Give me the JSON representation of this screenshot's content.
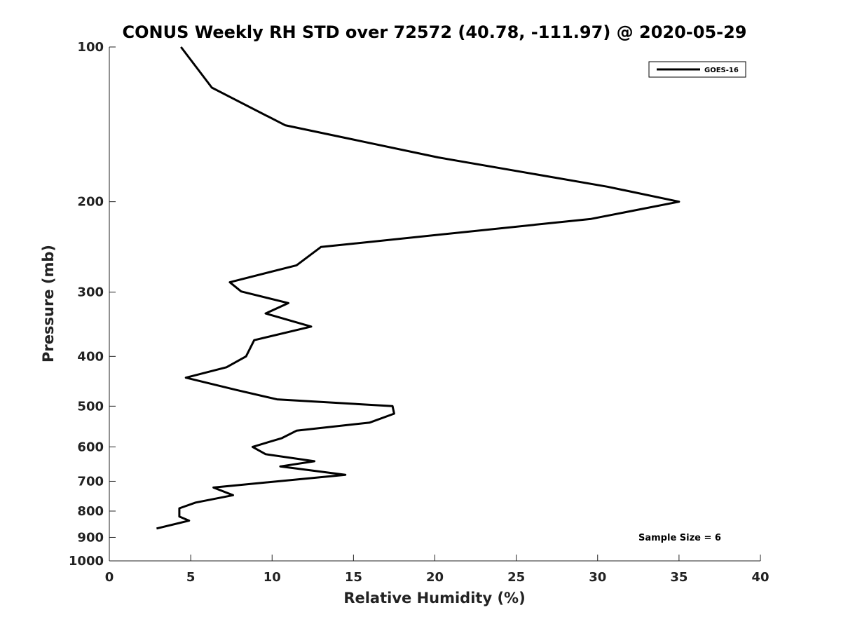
{
  "chart_data": {
    "type": "line",
    "title": "CONUS Weekly RH STD over 72572 (40.78, -111.97) @ 2020-05-29",
    "xlabel": "Relative Humidity (%)",
    "ylabel": "Pressure (mb)",
    "xlim": [
      0,
      40
    ],
    "ylim": [
      1000,
      100
    ],
    "yscale": "log",
    "x_ticks": [
      0,
      5,
      10,
      15,
      20,
      25,
      30,
      35,
      40
    ],
    "x_tick_labels": [
      "0",
      "5",
      "10",
      "15",
      "20",
      "25",
      "30",
      "35",
      "40"
    ],
    "y_ticks": [
      100,
      200,
      300,
      400,
      500,
      600,
      700,
      800,
      900,
      1000
    ],
    "y_tick_labels": [
      "100",
      "200",
      "300",
      "400",
      "500",
      "600",
      "700",
      "800",
      "900",
      "1000"
    ],
    "legend_position": "top-right",
    "grid": false,
    "series": [
      {
        "name": "GOES-16",
        "color": "#000000",
        "x": [
          4.4,
          6.3,
          10.8,
          20.2,
          30.6,
          35.0,
          29.6,
          13.0,
          11.5,
          7.4,
          8.1,
          11.0,
          9.6,
          12.4,
          8.9,
          8.4,
          7.2,
          4.7,
          7.8,
          10.3,
          17.4,
          17.5,
          16.0,
          11.5,
          10.6,
          8.8,
          9.6,
          12.6,
          10.5,
          14.5,
          6.4,
          7.6,
          5.3,
          4.3,
          4.3,
          4.9,
          2.9
        ],
        "y": [
          100,
          120,
          142,
          164,
          187,
          200,
          216,
          245,
          266,
          287,
          299,
          315,
          330,
          350,
          372,
          400,
          420,
          440,
          465,
          485,
          500,
          517,
          538,
          558,
          577,
          600,
          620,
          640,
          655,
          680,
          720,
          745,
          770,
          790,
          820,
          835,
          865
        ]
      }
    ],
    "annotations": [
      {
        "text": "Sample Size = 6",
        "position": "bottom-right"
      }
    ]
  }
}
